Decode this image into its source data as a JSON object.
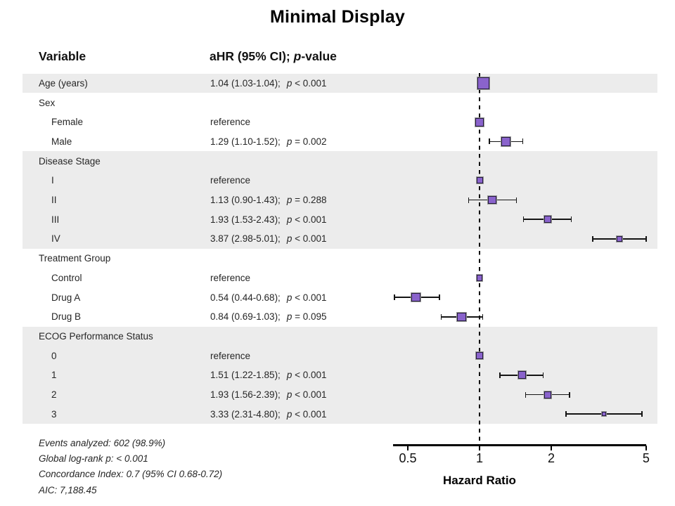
{
  "title": "Minimal Display",
  "header": {
    "variable": "Variable",
    "ahr_prefix": "aHR (95% CI); ",
    "ahr_p": "p",
    "ahr_suffix": "-value"
  },
  "axis": {
    "label": "Hazard Ratio",
    "scale": "log",
    "ticks": [
      "0.5",
      "1",
      "2",
      "5"
    ],
    "tick_values": [
      0.5,
      1,
      2,
      5
    ],
    "range": [
      0.44,
      5.05
    ],
    "reference_line": 1
  },
  "colors": {
    "marker_fill": "#8a63cc",
    "marker_border": "#241c3a",
    "band": "#ececec",
    "axis": "#000000",
    "text": "#262626"
  },
  "footer": {
    "lines": [
      "Events analyzed: 602 (98.9%)",
      "Global log-rank p: < 0.001",
      "Concordance Index: 0.7 (95% CI 0.68-0.72)",
      "AIC: 7,188.45"
    ]
  },
  "chart_data": {
    "type": "forest",
    "title": "Minimal Display",
    "xlabel": "Hazard Ratio",
    "xlim_log": [
      0.44,
      5.05
    ],
    "rows": [
      {
        "label": "Age (years)",
        "indent": 0,
        "shaded": true,
        "estimate": "1.04 (1.03-1.04);",
        "p": "< 0.001",
        "hr": 1.04,
        "ci_low": 1.03,
        "ci_high": 1.04,
        "weight": 17
      },
      {
        "label": "Sex",
        "indent": 0,
        "shaded": false
      },
      {
        "label": "Female",
        "indent": 1,
        "shaded": false,
        "estimate": "reference",
        "hr": 1,
        "weight": 12.5
      },
      {
        "label": "Male",
        "indent": 1,
        "shaded": false,
        "estimate": "1.29 (1.10-1.52);",
        "p": "= 0.002",
        "hr": 1.29,
        "ci_low": 1.1,
        "ci_high": 1.52,
        "weight": 12.5
      },
      {
        "label": "Disease Stage",
        "indent": 0,
        "shaded": true
      },
      {
        "label": "I",
        "indent": 1,
        "shaded": true,
        "estimate": "reference",
        "hr": 1,
        "weight": 9
      },
      {
        "label": "II",
        "indent": 1,
        "shaded": true,
        "estimate": "1.13 (0.90-1.43);",
        "p": "= 0.288",
        "hr": 1.13,
        "ci_low": 0.9,
        "ci_high": 1.43,
        "weight": 11.5
      },
      {
        "label": "III",
        "indent": 1,
        "shaded": true,
        "estimate": "1.93 (1.53-2.43);",
        "p": "< 0.001",
        "hr": 1.93,
        "ci_low": 1.53,
        "ci_high": 2.43,
        "weight": 10
      },
      {
        "label": "IV",
        "indent": 1,
        "shaded": true,
        "estimate": "3.87 (2.98-5.01);",
        "p": "< 0.001",
        "hr": 3.87,
        "ci_low": 2.98,
        "ci_high": 5.01,
        "weight": 7.5
      },
      {
        "label": "Treatment Group",
        "indent": 0,
        "shaded": false
      },
      {
        "label": "Control",
        "indent": 1,
        "shaded": false,
        "estimate": "reference",
        "hr": 1,
        "weight": 8.5
      },
      {
        "label": "Drug A",
        "indent": 1,
        "shaded": false,
        "estimate": "0.54 (0.44-0.68);",
        "p": "< 0.001",
        "hr": 0.54,
        "ci_low": 0.44,
        "ci_high": 0.68,
        "weight": 12.5
      },
      {
        "label": "Drug B",
        "indent": 1,
        "shaded": false,
        "estimate": "0.84 (0.69-1.03);",
        "p": "= 0.095",
        "hr": 0.84,
        "ci_low": 0.69,
        "ci_high": 1.03,
        "weight": 12.5
      },
      {
        "label": "ECOG Performance Status",
        "indent": 0,
        "shaded": true
      },
      {
        "label": "0",
        "indent": 1,
        "shaded": true,
        "estimate": "reference",
        "hr": 1,
        "weight": 10.5
      },
      {
        "label": "1",
        "indent": 1,
        "shaded": true,
        "estimate": "1.51 (1.22-1.85);",
        "p": "< 0.001",
        "hr": 1.51,
        "ci_low": 1.22,
        "ci_high": 1.85,
        "weight": 11
      },
      {
        "label": "2",
        "indent": 1,
        "shaded": true,
        "estimate": "1.93 (1.56-2.39);",
        "p": "< 0.001",
        "hr": 1.93,
        "ci_low": 1.56,
        "ci_high": 2.39,
        "weight": 10
      },
      {
        "label": "3",
        "indent": 1,
        "shaded": true,
        "estimate": "3.33 (2.31-4.80);",
        "p": "< 0.001",
        "hr": 3.33,
        "ci_low": 2.31,
        "ci_high": 4.8,
        "weight": 6
      }
    ]
  }
}
